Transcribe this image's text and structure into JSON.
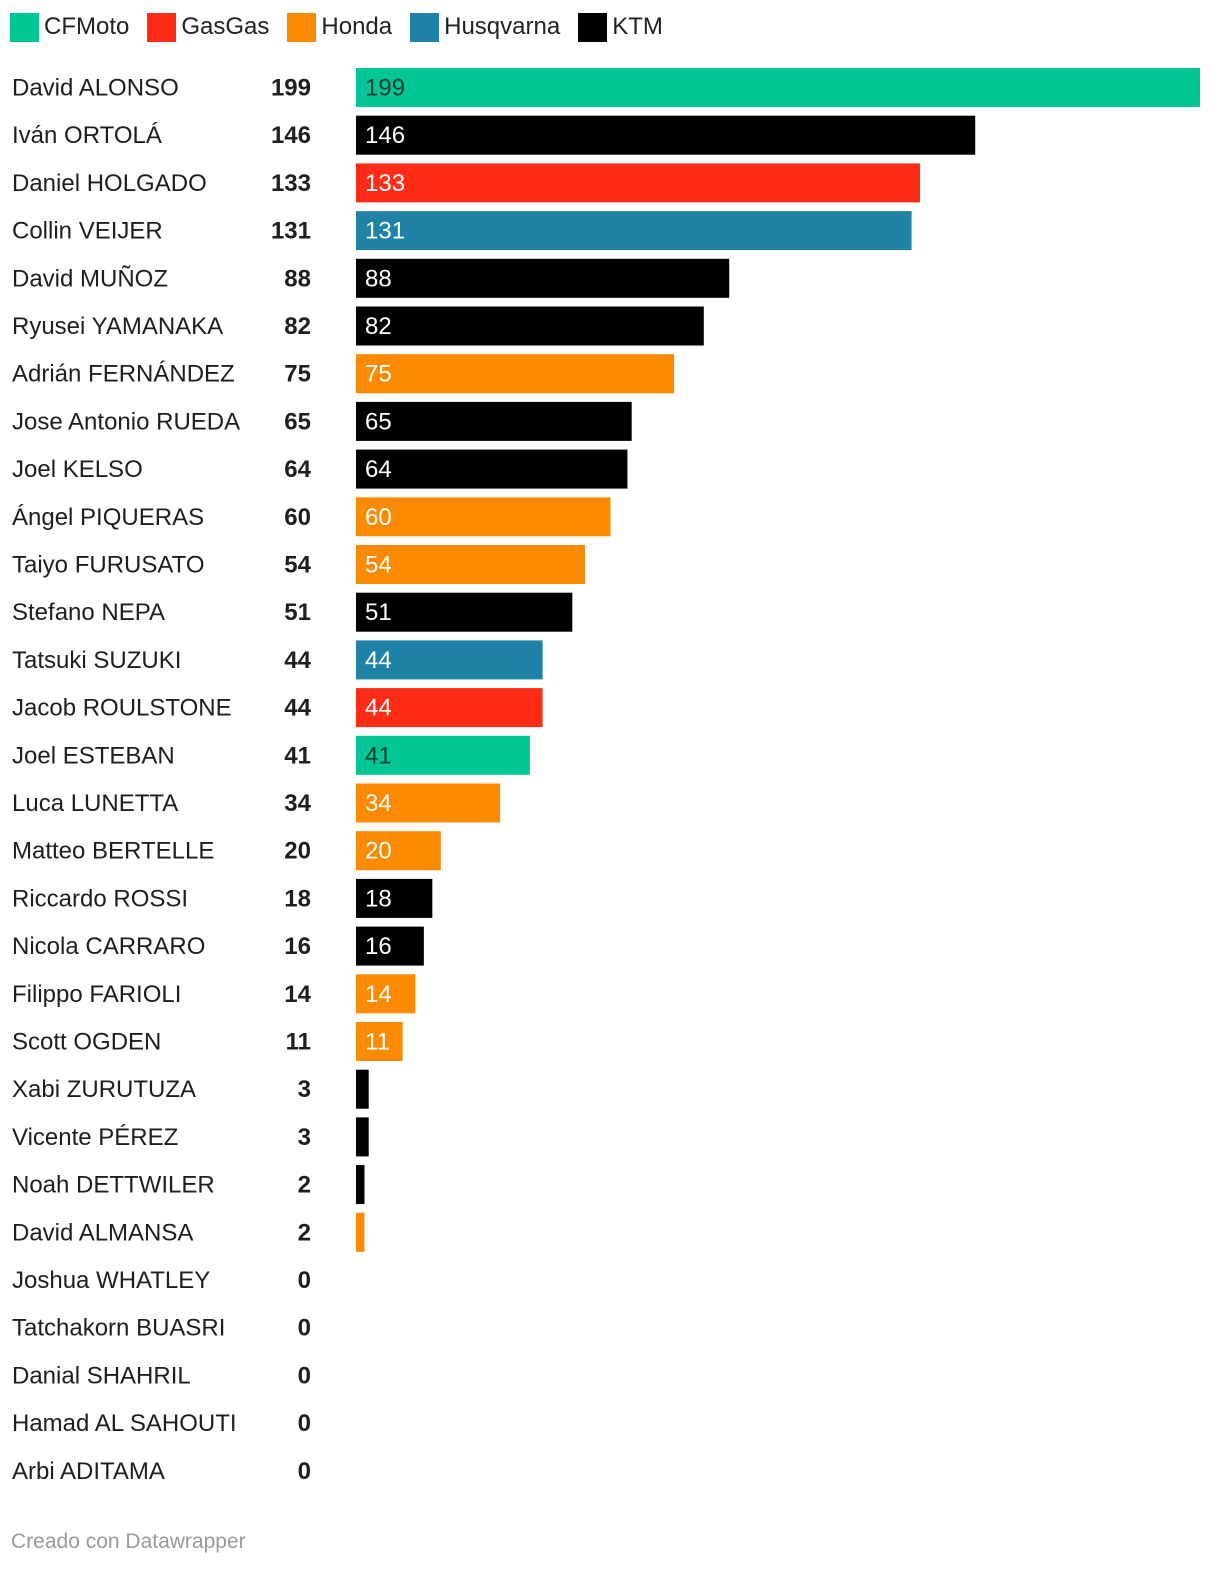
{
  "chart_data": {
    "type": "bar",
    "orientation": "horizontal",
    "legend_position": "top-left",
    "manufacturers": [
      {
        "name": "CFMoto",
        "color": "#00c595"
      },
      {
        "name": "GasGas",
        "color": "#ff2d17"
      },
      {
        "name": "Honda",
        "color": "#fb8a00"
      },
      {
        "name": "Husqvarna",
        "color": "#1f83a8"
      },
      {
        "name": "KTM",
        "color": "#000000"
      }
    ],
    "xlim": [
      0,
      199
    ],
    "rows": [
      {
        "rider": "David ALONSO",
        "points": 199,
        "manufacturer": "CFMoto",
        "label_color": "#1e3a2f"
      },
      {
        "rider": "Iván ORTOLÁ",
        "points": 146,
        "manufacturer": "KTM",
        "label_color": "#ffffff"
      },
      {
        "rider": "Daniel HOLGADO",
        "points": 133,
        "manufacturer": "GasGas",
        "label_color": "#ffffff"
      },
      {
        "rider": "Collin VEIJER",
        "points": 131,
        "manufacturer": "Husqvarna",
        "label_color": "#ffffff"
      },
      {
        "rider": "David MUÑOZ",
        "points": 88,
        "manufacturer": "KTM",
        "label_color": "#ffffff"
      },
      {
        "rider": "Ryusei YAMANAKA",
        "points": 82,
        "manufacturer": "KTM",
        "label_color": "#ffffff"
      },
      {
        "rider": "Adrián FERNÁNDEZ",
        "points": 75,
        "manufacturer": "Honda",
        "label_color": "#ffffff"
      },
      {
        "rider": "Jose Antonio RUEDA",
        "points": 65,
        "manufacturer": "KTM",
        "label_color": "#ffffff"
      },
      {
        "rider": "Joel KELSO",
        "points": 64,
        "manufacturer": "KTM",
        "label_color": "#ffffff"
      },
      {
        "rider": "Ángel PIQUERAS",
        "points": 60,
        "manufacturer": "Honda",
        "label_color": "#ffffff"
      },
      {
        "rider": "Taiyo FURUSATO",
        "points": 54,
        "manufacturer": "Honda",
        "label_color": "#ffffff"
      },
      {
        "rider": "Stefano NEPA",
        "points": 51,
        "manufacturer": "KTM",
        "label_color": "#ffffff"
      },
      {
        "rider": "Tatsuki SUZUKI",
        "points": 44,
        "manufacturer": "Husqvarna",
        "label_color": "#ffffff"
      },
      {
        "rider": "Jacob ROULSTONE",
        "points": 44,
        "manufacturer": "GasGas",
        "label_color": "#ffffff"
      },
      {
        "rider": "Joel ESTEBAN",
        "points": 41,
        "manufacturer": "CFMoto",
        "label_color": "#1e3a2f"
      },
      {
        "rider": "Luca LUNETTA",
        "points": 34,
        "manufacturer": "Honda",
        "label_color": "#ffffff"
      },
      {
        "rider": "Matteo BERTELLE",
        "points": 20,
        "manufacturer": "Honda",
        "label_color": "#ffffff"
      },
      {
        "rider": "Riccardo ROSSI",
        "points": 18,
        "manufacturer": "KTM",
        "label_color": "#ffffff"
      },
      {
        "rider": "Nicola CARRARO",
        "points": 16,
        "manufacturer": "KTM",
        "label_color": "#ffffff"
      },
      {
        "rider": "Filippo FARIOLI",
        "points": 14,
        "manufacturer": "Honda",
        "label_color": "#ffffff"
      },
      {
        "rider": "Scott OGDEN",
        "points": 11,
        "manufacturer": "Honda",
        "label_color": "#ffffff"
      },
      {
        "rider": "Xabi ZURUTUZA",
        "points": 3,
        "manufacturer": "KTM",
        "label_color": null
      },
      {
        "rider": "Vicente PÉREZ",
        "points": 3,
        "manufacturer": "KTM",
        "label_color": null
      },
      {
        "rider": "Noah DETTWILER",
        "points": 2,
        "manufacturer": "KTM",
        "label_color": null
      },
      {
        "rider": "David ALMANSA",
        "points": 2,
        "manufacturer": "Honda",
        "label_color": null
      },
      {
        "rider": "Joshua WHATLEY",
        "points": 0,
        "manufacturer": null,
        "label_color": null
      },
      {
        "rider": "Tatchakorn BUASRI",
        "points": 0,
        "manufacturer": null,
        "label_color": null
      },
      {
        "rider": "Danial SHAHRIL",
        "points": 0,
        "manufacturer": null,
        "label_color": null
      },
      {
        "rider": "Hamad AL SAHOUTI",
        "points": 0,
        "manufacturer": null,
        "label_color": null
      },
      {
        "rider": "Arbi ADITAMA",
        "points": 0,
        "manufacturer": null,
        "label_color": null
      }
    ]
  },
  "footer": {
    "credit": "Creado con Datawrapper"
  }
}
